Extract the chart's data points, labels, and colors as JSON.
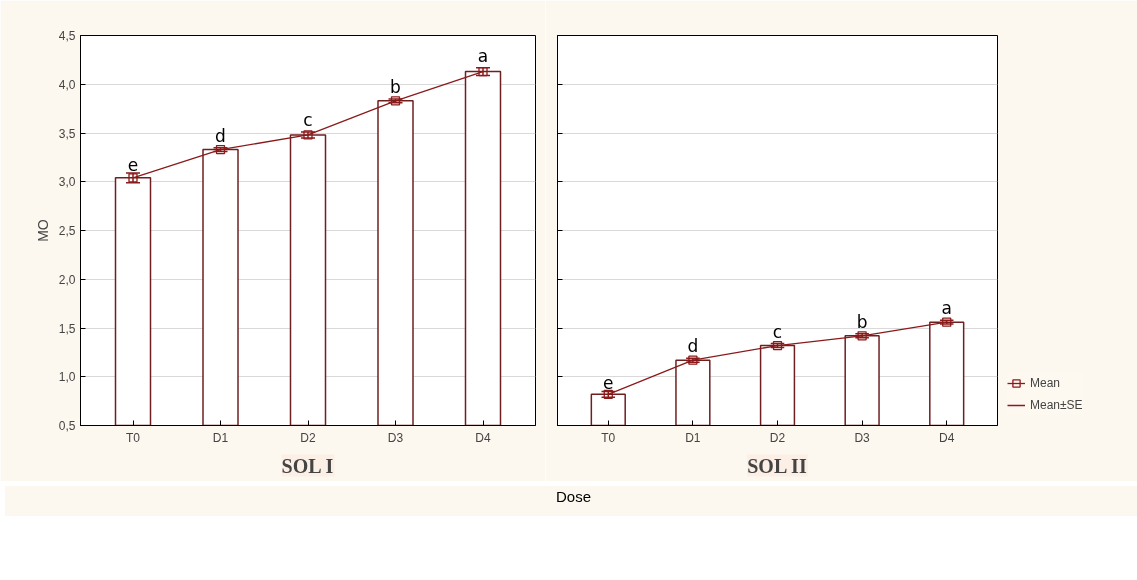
{
  "chart_data": [
    {
      "type": "bar",
      "title": "SOL I",
      "ylabel": "MO",
      "categories": [
        "T0",
        "D1",
        "D2",
        "D3",
        "D4"
      ],
      "ylim": [
        0.5,
        4.5
      ],
      "yticks": [
        {
          "value": 0.5,
          "label": "0,5"
        },
        {
          "value": 1.0,
          "label": "1,0"
        },
        {
          "value": 1.5,
          "label": "1,5"
        },
        {
          "value": 2.0,
          "label": "2,0"
        },
        {
          "value": 2.5,
          "label": "2,5"
        },
        {
          "value": 3.0,
          "label": "3,0"
        },
        {
          "value": 3.5,
          "label": "3,5"
        },
        {
          "value": 4.0,
          "label": "4,0"
        },
        {
          "value": 4.5,
          "label": "4,5"
        }
      ],
      "grid": "y",
      "marker": "square",
      "series": [
        {
          "color": "#6e1f1f",
          "values": [
            3.04,
            3.33,
            3.48,
            3.83,
            4.13
          ]
        },
        {
          "type": "line",
          "color": "#8b1a1a",
          "values": [
            3.04,
            3.33,
            3.48,
            3.83,
            4.13
          ],
          "errors": [
            0.05,
            0.02,
            0.03,
            0.02,
            0.04
          ]
        }
      ],
      "annotations": [
        {
          "text": "e",
          "x": "T0",
          "y": 3.09
        },
        {
          "text": "d",
          "x": "D1",
          "y": 3.35
        },
        {
          "text": "c",
          "x": "D2",
          "y": 3.51
        },
        {
          "text": "b",
          "x": "D3",
          "y": 3.85
        },
        {
          "text": "a",
          "x": "D4",
          "y": 4.17
        }
      ]
    },
    {
      "type": "bar",
      "title": "SOL II",
      "xlabel": "Dose",
      "categories": [
        "T0",
        "D1",
        "D2",
        "D3",
        "D4"
      ],
      "ylim": [
        0.5,
        4.5
      ],
      "yticks": [
        0.5,
        1.0,
        1.5,
        2.0,
        2.5,
        3.0,
        3.5,
        4.0,
        4.5
      ],
      "tick_labels": "x",
      "grid": "y",
      "marker": "square",
      "legend": "bottom right",
      "series": [
        {
          "color": "#6e1f1f",
          "values": [
            0.82,
            1.17,
            1.32,
            1.42,
            1.56
          ]
        },
        {
          "type": "line",
          "name": "Mean",
          "color": "#8b1a1a",
          "values": [
            0.82,
            1.17,
            1.32,
            1.42,
            1.56
          ],
          "errors": [
            0.03,
            0.02,
            0.02,
            0.02,
            0.02
          ]
        }
      ],
      "annotations": [
        {
          "text": "e",
          "x": "T0",
          "y": 0.85
        },
        {
          "text": "d",
          "x": "D1",
          "y": 1.19
        },
        {
          "text": "c",
          "x": "D2",
          "y": 1.34
        },
        {
          "text": "b",
          "x": "D3",
          "y": 1.44
        },
        {
          "text": "a",
          "x": "D4",
          "y": 1.58
        },
        "Mean±SE"
      ]
    }
  ]
}
